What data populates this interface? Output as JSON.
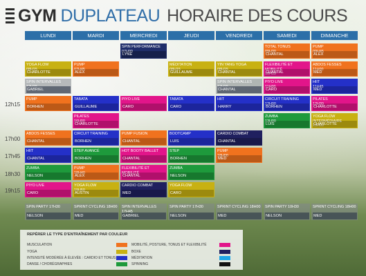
{
  "header": {
    "gym": "GYM",
    "duplateau": "DUPLATEAU",
    "horaire": "HORAIRE DES COURS"
  },
  "days": [
    "LUNDI",
    "MARDI",
    "MERCREDI",
    "JEUDI",
    "VENDREDI",
    "SAMEDI",
    "DIMANCHE"
  ],
  "times": [
    "12h15",
    "17h00",
    "17h45",
    "18h30",
    "19h15"
  ],
  "legend": {
    "title": "REPÉRER LE TYPE D'ENTRAÎNEMENT PAR COULEUR",
    "items": [
      {
        "label": "MUSCULATION",
        "color": "#f0721e"
      },
      {
        "label": "YOGA",
        "color": "#c8b112"
      },
      {
        "label": "INTENSITÉ MODÉRÉE À ÉLEVÉE : CARDIO ET TONUS",
        "color": "#2430c8"
      },
      {
        "label": "DANSE / CHORÉGRAPHIES",
        "color": "#1e9a3c"
      },
      {
        "label": "MOBILITÉ, POSTURE, TONUS ET FLEXIBILITÉ",
        "color": "#e2158a"
      },
      {
        "label": "BOXE",
        "color": "#20205f"
      },
      {
        "label": "MÉDITATION",
        "color": "#1fa6e6"
      },
      {
        "label": "SPINNING",
        "color": "#111111"
      }
    ]
  },
  "classes": [
    {
      "name": "TOTAL TONUS",
      "time": "09H30",
      "coach": "CHANTAL",
      "color": "orange"
    },
    {
      "name": "PUMP",
      "time": "09H45",
      "coach": "ALEX",
      "color": "orange"
    },
    {
      "name": "SPIN PERFORMANCE 07H00",
      "time": "",
      "coach": "LYNE",
      "color": "navy"
    },
    {
      "name": "YOGA FLOW",
      "time": "08H15",
      "coach": "CHARLOTTE",
      "color": "yellow"
    },
    {
      "name": "PUMP",
      "time": "07H45",
      "coach": "ALEX",
      "color": "orange"
    },
    {
      "name": "MÉDITATION",
      "time": "08H15",
      "coach": "GUILLAUME",
      "color": "yellow"
    },
    {
      "name": "YIN YANG YOGA",
      "time": "08H15",
      "coach": "CHANTAL",
      "color": "yellow"
    },
    {
      "name": "FLEXIBILITÉ ET MOBILITÉ",
      "time": "10H15",
      "coach": "CHANTAL",
      "color": "pink"
    },
    {
      "name": "ABDOS FESSES",
      "time": "11H00",
      "coach": "MED",
      "color": "orange"
    },
    {
      "name": "SPIN INTERVALLES 12H15",
      "time": "",
      "coach": "GABRIEL",
      "color": "gray"
    },
    {
      "name": "SPIN INTERVALLES 12H15",
      "time": "",
      "coach": "CHANTAL",
      "color": "gray"
    },
    {
      "name": "PIYO LIVE",
      "time": "11H00",
      "coach": "CARO",
      "color": "pink"
    },
    {
      "name": "HIIT",
      "time": "11H45",
      "coach": "MED",
      "color": "blue"
    },
    {
      "name": "PUMP",
      "time": "",
      "coach": "BORHEN",
      "color": "orange"
    },
    {
      "name": "TABATA",
      "time": "",
      "coach": "GUILLAUME",
      "color": "blue"
    },
    {
      "name": "PIYO LIVE",
      "time": "",
      "coach": "CARO",
      "color": "pink"
    },
    {
      "name": "TABATA",
      "time": "",
      "coach": "CARO",
      "color": "blue"
    },
    {
      "name": "HIIT",
      "time": "",
      "coach": "HARRY",
      "color": "blue"
    },
    {
      "name": "CIRCUIT TRAINING",
      "time": "12H00",
      "coach": "BORHEN",
      "color": "blue"
    },
    {
      "name": "PILATES",
      "time": "12H30",
      "coach": "CHARLOTTE",
      "color": "pink"
    },
    {
      "name": "PILATES",
      "time": "16H00",
      "coach": "CHARLOTTE",
      "color": "pink"
    },
    {
      "name": "ZUMBA",
      "time": "13H00",
      "coach": "LUIS",
      "color": "green"
    },
    {
      "name": "YOGA FLOW INTERMÉDIAIRE",
      "time": "13H00",
      "coach": "CHARLOTTE",
      "color": "yellow"
    },
    {
      "name": "ABDOS FESSES",
      "time": "",
      "coach": "CHANTAL",
      "color": "orange"
    },
    {
      "name": "CIRCUIT TRAINING",
      "time": "",
      "coach": "BORHEN",
      "color": "blue"
    },
    {
      "name": "PUMP FUSION",
      "time": "",
      "coach": "CHANTAL",
      "color": "orange"
    },
    {
      "name": "BOOTCAMP",
      "time": "",
      "coach": "LUIS",
      "color": "blue"
    },
    {
      "name": "CARDIO COMBAT",
      "time": "",
      "coach": "CHANTAL",
      "color": "purple"
    },
    {
      "name": "HIIT",
      "time": "",
      "coach": "CHANTAL",
      "color": "blue"
    },
    {
      "name": "STEP AVANCÉ",
      "time": "",
      "coach": "BORHEN",
      "color": "green"
    },
    {
      "name": "HOT BOOTY BALLET",
      "time": "",
      "coach": "CHANTAL",
      "color": "pink"
    },
    {
      "name": "STEP",
      "time": "",
      "coach": "BORHEN",
      "color": "green"
    },
    {
      "name": "PUMP",
      "time": "18H00",
      "coach": "MED",
      "color": "orange"
    },
    {
      "name": "ZUMBA",
      "time": "",
      "coach": "NELSON",
      "color": "green"
    },
    {
      "name": "PUMP",
      "time": "18H40",
      "coach": "ALEX",
      "color": "orange"
    },
    {
      "name": "FLEXIBILITÉ ET MOBILITÉ",
      "time": "",
      "coach": "CHANTAL",
      "color": "pink"
    },
    {
      "name": "ZUMBA",
      "time": "",
      "coach": "NELSON",
      "color": "green"
    },
    {
      "name": "PIYO LIVE",
      "time": "",
      "coach": "CARO",
      "color": "pink"
    },
    {
      "name": "YOGA FLOW",
      "time": "19H50",
      "coach": "AUSTIN",
      "color": "yellow"
    },
    {
      "name": "CARDIO COMBAT",
      "time": "",
      "coach": "MED",
      "color": "purple"
    },
    {
      "name": "YOGA FLOW",
      "time": "",
      "coach": "CARO",
      "color": "yellow"
    },
    {
      "name": "SPIN PARTY 17H30",
      "time": "",
      "coach": "NELSON",
      "color": "gray"
    },
    {
      "name": "SPRINT CYCLING 18H00",
      "time": "",
      "coach": "MED",
      "color": "gray"
    },
    {
      "name": "SPIN INTERVALLES 17H45",
      "time": "",
      "coach": "GABRIEL",
      "color": "gray"
    },
    {
      "name": "SPIN PARTY 17H30",
      "time": "",
      "coach": "NELSON",
      "color": "gray"
    },
    {
      "name": "SPRINT CYCLING 18H00",
      "time": "",
      "coach": "MED",
      "color": "gray"
    },
    {
      "name": "SPIN PARTY 10H30",
      "time": "",
      "coach": "NELSON",
      "color": "gray"
    },
    {
      "name": "SPRINT CYCLING 18H00",
      "time": "",
      "coach": "MED",
      "color": "gray"
    }
  ]
}
